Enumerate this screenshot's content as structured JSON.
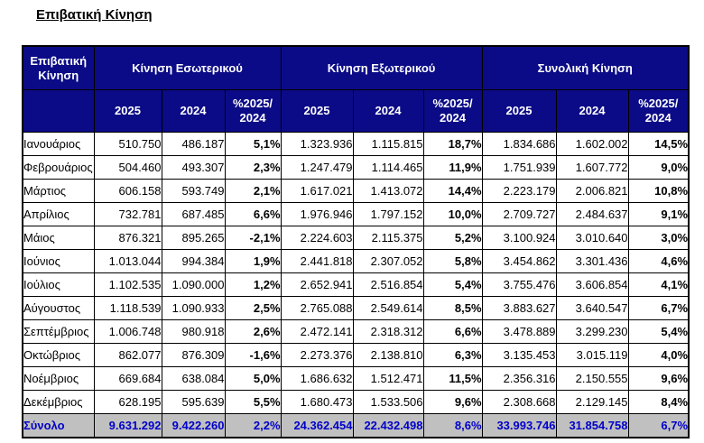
{
  "page": {
    "title": "Επιβατική Κίνηση"
  },
  "colors": {
    "header_bg": "#0b0b87",
    "header_text": "#ffffff",
    "total_row_bg": "#c0c0c0",
    "total_row_text": "#0000cc",
    "border": "#000000"
  },
  "table": {
    "corner_header": "Επιβατική\nΚίνηση",
    "groups": [
      "Κίνηση Εσωτερικού",
      "Κίνηση Εξωτερικού",
      "Συνολική Κίνηση"
    ],
    "year_headers": [
      "2025",
      "2024",
      "%2025/\n2024"
    ],
    "rows": [
      {
        "label": "Ιανουάριος",
        "cells": [
          "510.750",
          "486.187",
          "5,1%",
          "1.323.936",
          "1.115.815",
          "18,7%",
          "1.834.686",
          "1.602.002",
          "14,5%"
        ]
      },
      {
        "label": "Φεβρουάριος",
        "cells": [
          "504.460",
          "493.307",
          "2,3%",
          "1.247.479",
          "1.114.465",
          "11,9%",
          "1.751.939",
          "1.607.772",
          "9,0%"
        ]
      },
      {
        "label": "Μάρτιος",
        "cells": [
          "606.158",
          "593.749",
          "2,1%",
          "1.617.021",
          "1.413.072",
          "14,4%",
          "2.223.179",
          "2.006.821",
          "10,8%"
        ]
      },
      {
        "label": "Απρίλιος",
        "cells": [
          "732.781",
          "687.485",
          "6,6%",
          "1.976.946",
          "1.797.152",
          "10,0%",
          "2.709.727",
          "2.484.637",
          "9,1%"
        ]
      },
      {
        "label": "Μάιος",
        "cells": [
          "876.321",
          "895.265",
          "-2,1%",
          "2.224.603",
          "2.115.375",
          "5,2%",
          "3.100.924",
          "3.010.640",
          "3,0%"
        ]
      },
      {
        "label": "Ιούνιος",
        "cells": [
          "1.013.044",
          "994.384",
          "1,9%",
          "2.441.818",
          "2.307.052",
          "5,8%",
          "3.454.862",
          "3.301.436",
          "4,6%"
        ]
      },
      {
        "label": "Ιούλιος",
        "cells": [
          "1.102.535",
          "1.090.000",
          "1,2%",
          "2.652.941",
          "2.516.854",
          "5,4%",
          "3.755.476",
          "3.606.854",
          "4,1%"
        ]
      },
      {
        "label": "Αύγουστος",
        "cells": [
          "1.118.539",
          "1.090.933",
          "2,5%",
          "2.765.088",
          "2.549.614",
          "8,5%",
          "3.883.627",
          "3.640.547",
          "6,7%"
        ]
      },
      {
        "label": "Σεπτέμβριος",
        "cells": [
          "1.006.748",
          "980.918",
          "2,6%",
          "2.472.141",
          "2.318.312",
          "6,6%",
          "3.478.889",
          "3.299.230",
          "5,4%"
        ]
      },
      {
        "label": "Οκτώβριος",
        "cells": [
          "862.077",
          "876.309",
          "-1,6%",
          "2.273.376",
          "2.138.810",
          "6,3%",
          "3.135.453",
          "3.015.119",
          "4,0%"
        ]
      },
      {
        "label": "Νοέμβριος",
        "cells": [
          "669.684",
          "638.084",
          "5,0%",
          "1.686.632",
          "1.512.471",
          "11,5%",
          "2.356.316",
          "2.150.555",
          "9,6%"
        ]
      },
      {
        "label": "Δεκέμβριος",
        "cells": [
          "628.195",
          "595.639",
          "5,5%",
          "1.680.473",
          "1.533.506",
          "9,6%",
          "2.308.668",
          "2.129.145",
          "8,4%"
        ]
      }
    ],
    "total": {
      "label": "Σύνολο",
      "cells": [
        "9.631.292",
        "9.422.260",
        "2,2%",
        "24.362.454",
        "22.432.498",
        "8,6%",
        "33.993.746",
        "31.854.758",
        "6,7%"
      ]
    }
  }
}
